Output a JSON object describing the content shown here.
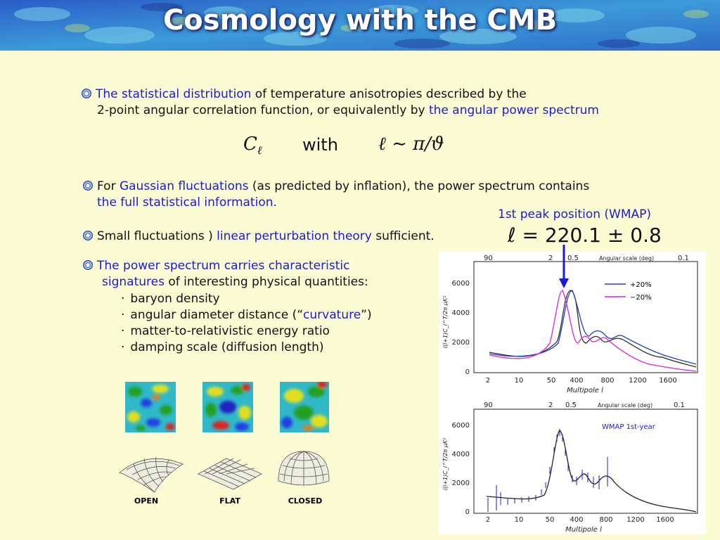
{
  "slide": {
    "title": "Cosmology with the CMB",
    "p1_a": "The statistical distribution",
    "p1_b": " of temperature anisotropies described by the",
    "p1_c": "2-point angular correlation function, or equivalently by ",
    "p1_d": "the angular power spectrum",
    "eq_with": "with",
    "p2_a": "For ",
    "p2_b": "Gaussian fluctuations",
    "p2_c": " (as predicted by inflation), the power spectrum contains",
    "p2_d": "the full statistical information.",
    "peak_label": "1st peak position (WMAP)",
    "peak_eq": "ℓ = 220.1 ± 0.8",
    "p3_a": "Small fluctuations ) ",
    "p3_b": "linear perturbation theory",
    "p3_c": " sufficient.",
    "p4_a": "The power spectrum carries characteristic",
    "p4_b": "signatures",
    "p4_c": " of interesting physical quantities:",
    "items": [
      "baryon density",
      "angular diameter distance (“",
      "curvature",
      "”)",
      "matter-to-relativistic energy ratio",
      "damping scale (diffusion length)"
    ],
    "shapes": [
      "OPEN",
      "FLAT",
      "CLOSED"
    ]
  },
  "plot_top": {
    "top_ticks": [
      "90",
      "2",
      "0.5",
      "0.1"
    ],
    "top_label": "Angular scale (deg)",
    "y_ticks": [
      "6000",
      "4000",
      "2000",
      "0"
    ],
    "x_ticks": [
      "2",
      "10",
      "50",
      "400",
      "800",
      "1200",
      "1600"
    ],
    "xlabel": "Multipole l",
    "ylabel": "l(l+1)C_l^T/2π μK²",
    "legend": [
      "+20%",
      "−20%"
    ]
  },
  "plot_bottom": {
    "top_ticks": [
      "90",
      "2",
      "0.5",
      "0.1"
    ],
    "top_label": "Angular scale (deg)",
    "y_ticks": [
      "6000",
      "4000",
      "2000",
      "0"
    ],
    "x_ticks": [
      "2",
      "10",
      "50",
      "400",
      "800",
      "1200",
      "1600"
    ],
    "xlabel": "Multipole l",
    "ylabel": "l(l+1)C_l^T/2π μK²",
    "legend": "WMAP 1st-year"
  },
  "colors": {
    "accent_blue": "#1a1ad8",
    "plus20": "#1e3fc8",
    "minus20": "#e020e0",
    "background": "#fcfcd4"
  }
}
